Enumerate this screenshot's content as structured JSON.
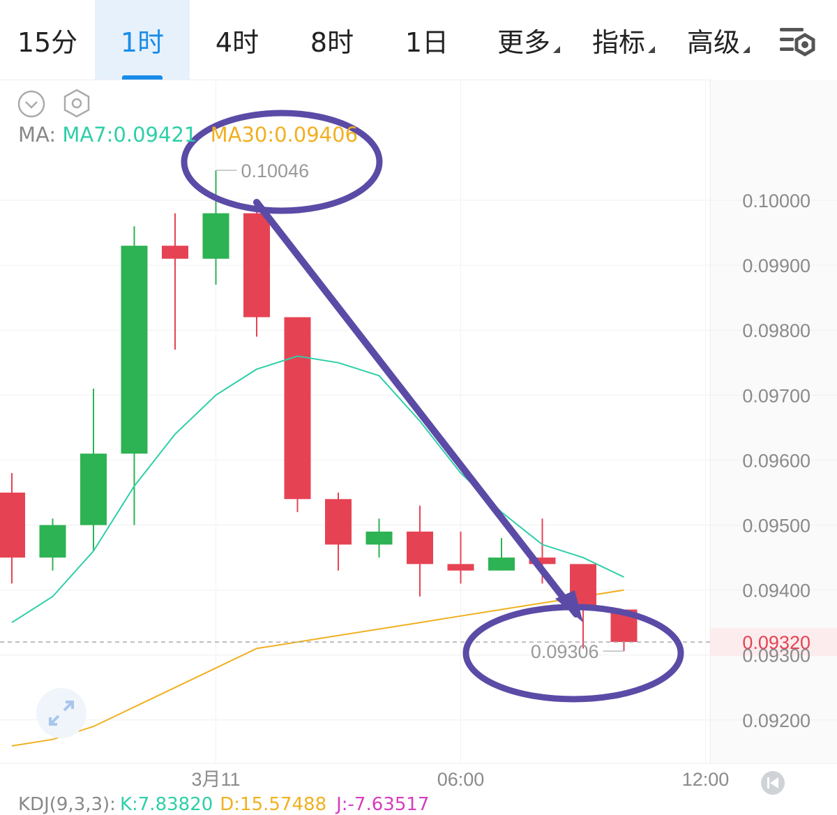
{
  "tabs": [
    {
      "label": "15分",
      "active": false,
      "dropdown": false
    },
    {
      "label": "1时",
      "active": true,
      "dropdown": false
    },
    {
      "label": "4时",
      "active": false,
      "dropdown": false
    },
    {
      "label": "8时",
      "active": false,
      "dropdown": false
    },
    {
      "label": "1日",
      "active": false,
      "dropdown": false
    },
    {
      "label": "更多",
      "active": false,
      "dropdown": true
    },
    {
      "label": "指标",
      "active": false,
      "dropdown": true
    },
    {
      "label": "高级",
      "active": false,
      "dropdown": true
    }
  ],
  "toolbar": {
    "settings_icon": "chart-settings-icon"
  },
  "controls": {
    "collapse_icon": "chevron-down-circle-icon",
    "settings_icon": "hexagon-settings-icon",
    "fullscreen_icon": "expand-icon",
    "scroll_end_icon": "rewind-icon"
  },
  "ma_legend": {
    "label": "MA:",
    "ma7": "MA7:0.09421",
    "ma30": "MA30:0.09406"
  },
  "kdj_legend": {
    "label": "KDJ(9,3,3):",
    "k": "K:7.83820",
    "d": "D:15.57488",
    "j": "J:-7.63517"
  },
  "colors": {
    "up": "#2db353",
    "down": "#e54354",
    "ma7": "#2ecfa8",
    "ma30": "#f0b020",
    "annotation": "#5b4ba6",
    "active_tab": "#1a8ce8",
    "current_price": "#e54354"
  },
  "chart_data": {
    "type": "candlestick",
    "interval": "1时",
    "y_axis": {
      "ticks": [
        "0.10000",
        "0.09900",
        "0.09800",
        "0.09700",
        "0.09600",
        "0.09500",
        "0.09400",
        "0.09300",
        "0.09200"
      ],
      "range": [
        0.0915,
        0.1031
      ]
    },
    "x_axis": {
      "labels": [
        {
          "text": "3月11",
          "index": 5
        },
        {
          "text": "06:00",
          "index": 11
        },
        {
          "text": "12:00",
          "index": 17
        }
      ]
    },
    "candles": [
      {
        "open": 0.0955,
        "high": 0.0958,
        "low": 0.0941,
        "close": 0.0945
      },
      {
        "open": 0.0945,
        "high": 0.0951,
        "low": 0.0943,
        "close": 0.095
      },
      {
        "open": 0.095,
        "high": 0.0971,
        "low": 0.0946,
        "close": 0.0961
      },
      {
        "open": 0.0961,
        "high": 0.0996,
        "low": 0.095,
        "close": 0.0993
      },
      {
        "open": 0.0993,
        "high": 0.0998,
        "low": 0.0977,
        "close": 0.0991
      },
      {
        "open": 0.0991,
        "high": 0.10046,
        "low": 0.0987,
        "close": 0.0998
      },
      {
        "open": 0.0998,
        "high": 0.1,
        "low": 0.0979,
        "close": 0.0982
      },
      {
        "open": 0.0982,
        "high": 0.0982,
        "low": 0.0952,
        "close": 0.0954
      },
      {
        "open": 0.0954,
        "high": 0.0955,
        "low": 0.0943,
        "close": 0.0947
      },
      {
        "open": 0.0947,
        "high": 0.0951,
        "low": 0.0945,
        "close": 0.0949
      },
      {
        "open": 0.0949,
        "high": 0.0953,
        "low": 0.0939,
        "close": 0.0944
      },
      {
        "open": 0.0944,
        "high": 0.0949,
        "low": 0.0941,
        "close": 0.0943
      },
      {
        "open": 0.0943,
        "high": 0.0948,
        "low": 0.0943,
        "close": 0.0945
      },
      {
        "open": 0.0945,
        "high": 0.0951,
        "low": 0.0941,
        "close": 0.0944
      },
      {
        "open": 0.0944,
        "high": 0.0944,
        "low": 0.0931,
        "close": 0.0937
      },
      {
        "open": 0.0937,
        "high": 0.0937,
        "low": 0.09306,
        "close": 0.0932
      }
    ],
    "ma7": [
      0.0935,
      0.0939,
      0.0946,
      0.0956,
      0.0964,
      0.097,
      0.0974,
      0.0976,
      0.0975,
      0.0973,
      0.0966,
      0.0958,
      0.0952,
      0.0947,
      0.0945,
      0.0942
    ],
    "ma30": [
      0.0916,
      0.0917,
      0.0919,
      0.0922,
      0.0925,
      0.0928,
      0.0931,
      0.0932,
      0.0933,
      0.0934,
      0.0935,
      0.0936,
      0.0937,
      0.0938,
      0.0939,
      0.094
    ],
    "high_marker": "0.10046",
    "low_marker": "0.09306",
    "current_price": "0.09320",
    "grid": true
  }
}
